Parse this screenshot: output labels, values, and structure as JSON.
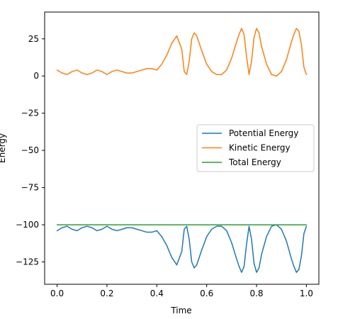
{
  "chart_data": {
    "type": "line",
    "xlabel": "Time",
    "ylabel": "Energy",
    "xlim": [
      -0.05,
      1.05
    ],
    "ylim": [
      -140,
      43
    ],
    "xticks": [
      0.0,
      0.2,
      0.4,
      0.6,
      0.8,
      1.0
    ],
    "xtick_labels": [
      "0.0",
      "0.2",
      "0.4",
      "0.6",
      "0.8",
      "1.0"
    ],
    "yticks": [
      25,
      0,
      -25,
      -50,
      -75,
      -100,
      -125
    ],
    "ytick_labels": [
      "25",
      "0",
      "−25",
      "−50",
      "−75",
      "−100",
      "−125"
    ],
    "grid": false,
    "legend_position": "center-right",
    "series": [
      {
        "name": "Potential Energy",
        "color": "#1f77b4",
        "x": [
          0.0,
          0.02,
          0.04,
          0.06,
          0.08,
          0.1,
          0.12,
          0.14,
          0.16,
          0.18,
          0.2,
          0.22,
          0.24,
          0.26,
          0.28,
          0.3,
          0.32,
          0.34,
          0.36,
          0.38,
          0.4,
          0.42,
          0.44,
          0.46,
          0.48,
          0.5,
          0.51,
          0.52,
          0.53,
          0.54,
          0.55,
          0.56,
          0.58,
          0.6,
          0.62,
          0.64,
          0.66,
          0.68,
          0.7,
          0.72,
          0.73,
          0.74,
          0.75,
          0.76,
          0.77,
          0.78,
          0.79,
          0.8,
          0.81,
          0.82,
          0.84,
          0.86,
          0.88,
          0.9,
          0.92,
          0.94,
          0.95,
          0.96,
          0.97,
          0.98,
          0.99,
          1.0
        ],
        "y": [
          -104,
          -102,
          -101,
          -103,
          -104,
          -102,
          -101,
          -102,
          -104,
          -103,
          -101,
          -103,
          -104,
          -103,
          -102,
          -102,
          -103,
          -104,
          -105,
          -105,
          -104,
          -108,
          -114,
          -122,
          -127,
          -118,
          -103,
          -101,
          -110,
          -125,
          -129,
          -127,
          -117,
          -108,
          -103,
          -101,
          -101,
          -104,
          -112,
          -123,
          -128,
          -132,
          -128,
          -113,
          -101,
          -110,
          -126,
          -132,
          -129,
          -120,
          -108,
          -101,
          -100,
          -103,
          -111,
          -123,
          -128,
          -132,
          -130,
          -121,
          -106,
          -101
        ]
      },
      {
        "name": "Kinetic Energy",
        "color": "#ff7f0e",
        "x": [
          0.0,
          0.02,
          0.04,
          0.06,
          0.08,
          0.1,
          0.12,
          0.14,
          0.16,
          0.18,
          0.2,
          0.22,
          0.24,
          0.26,
          0.28,
          0.3,
          0.32,
          0.34,
          0.36,
          0.38,
          0.4,
          0.42,
          0.44,
          0.46,
          0.48,
          0.5,
          0.51,
          0.52,
          0.53,
          0.54,
          0.55,
          0.56,
          0.58,
          0.6,
          0.62,
          0.64,
          0.66,
          0.68,
          0.7,
          0.72,
          0.73,
          0.74,
          0.75,
          0.76,
          0.77,
          0.78,
          0.79,
          0.8,
          0.81,
          0.82,
          0.84,
          0.86,
          0.88,
          0.9,
          0.92,
          0.94,
          0.95,
          0.96,
          0.97,
          0.98,
          0.99,
          1.0
        ],
        "y": [
          4,
          2,
          1,
          3,
          4,
          2,
          1,
          2,
          4,
          3,
          1,
          3,
          4,
          3,
          2,
          2,
          3,
          4,
          5,
          5,
          4,
          8,
          14,
          22,
          27,
          18,
          3,
          1,
          10,
          25,
          29,
          27,
          17,
          8,
          3,
          1,
          1,
          4,
          12,
          23,
          28,
          32,
          28,
          13,
          1,
          10,
          26,
          32,
          29,
          20,
          8,
          1,
          0,
          3,
          11,
          23,
          28,
          32,
          30,
          21,
          6,
          1
        ]
      },
      {
        "name": "Total Energy",
        "color": "#2ca02c",
        "x": [
          0.0,
          0.1,
          0.2,
          0.3,
          0.4,
          0.5,
          0.6,
          0.7,
          0.8,
          0.9,
          1.0
        ],
        "y": [
          -100,
          -100,
          -100,
          -100,
          -100,
          -100,
          -100,
          -100,
          -100,
          -100,
          -100
        ]
      }
    ]
  }
}
